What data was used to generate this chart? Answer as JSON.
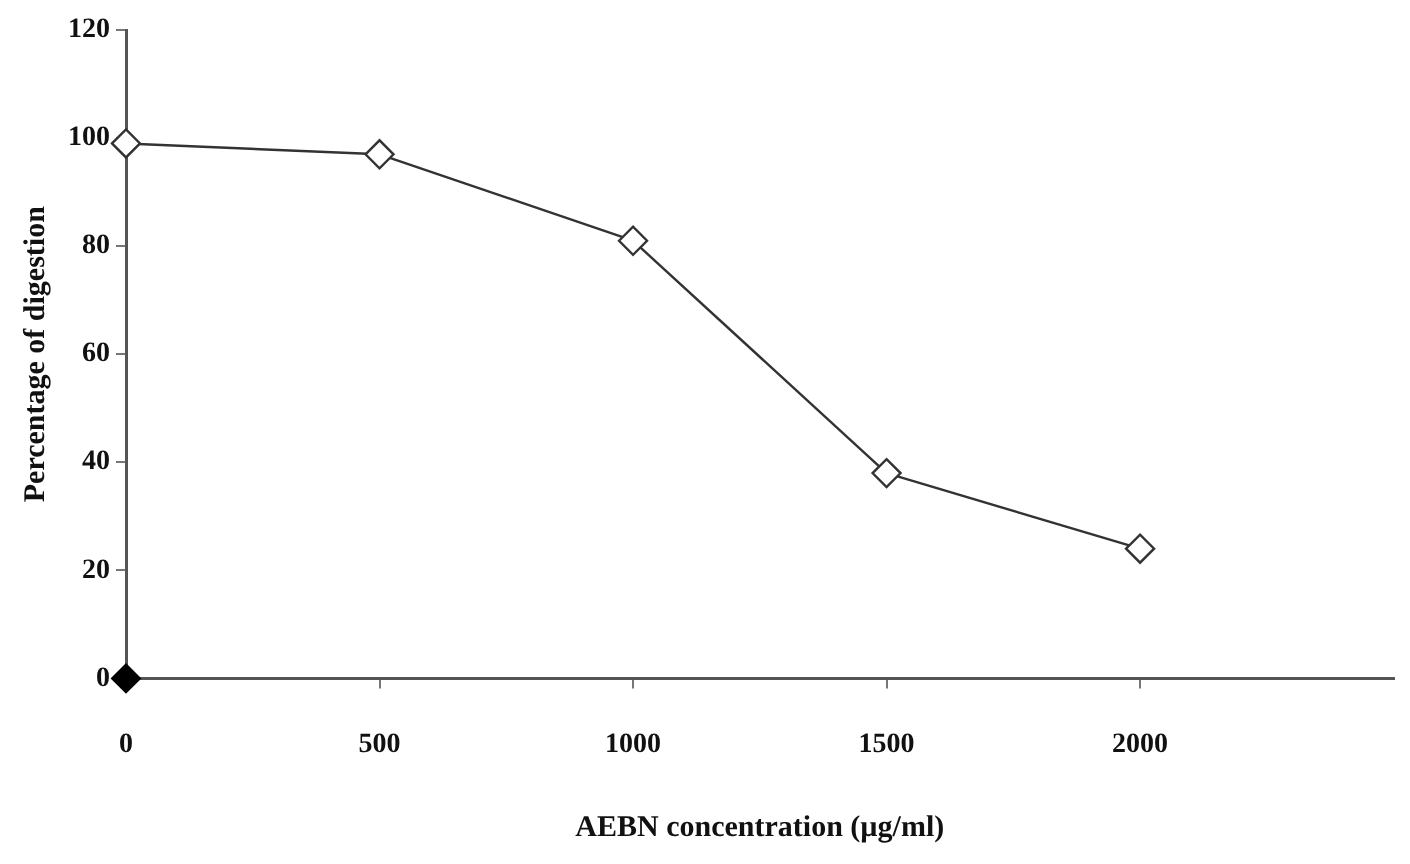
{
  "chart_data": {
    "type": "line",
    "xlabel": "AEBN concentration (µg/ml)",
    "ylabel": "Percentage of digestion",
    "xlim": [
      0,
      2500
    ],
    "xticks": [
      0,
      500,
      1000,
      1500,
      2000
    ],
    "ylim": [
      0,
      120
    ],
    "yticks": [
      0,
      20,
      40,
      60,
      80,
      100,
      120
    ],
    "grid": false,
    "legend": false,
    "marker": "diamond",
    "line_style": "solid",
    "series": [
      {
        "color": "#333333",
        "x": [
          0,
          500,
          1000,
          1500,
          2000
        ],
        "values": [
          99,
          97,
          81,
          38,
          24
        ]
      },
      {
        "type": "scatter",
        "color": "#000000",
        "x": [
          0
        ],
        "values": [
          0
        ]
      }
    ]
  }
}
